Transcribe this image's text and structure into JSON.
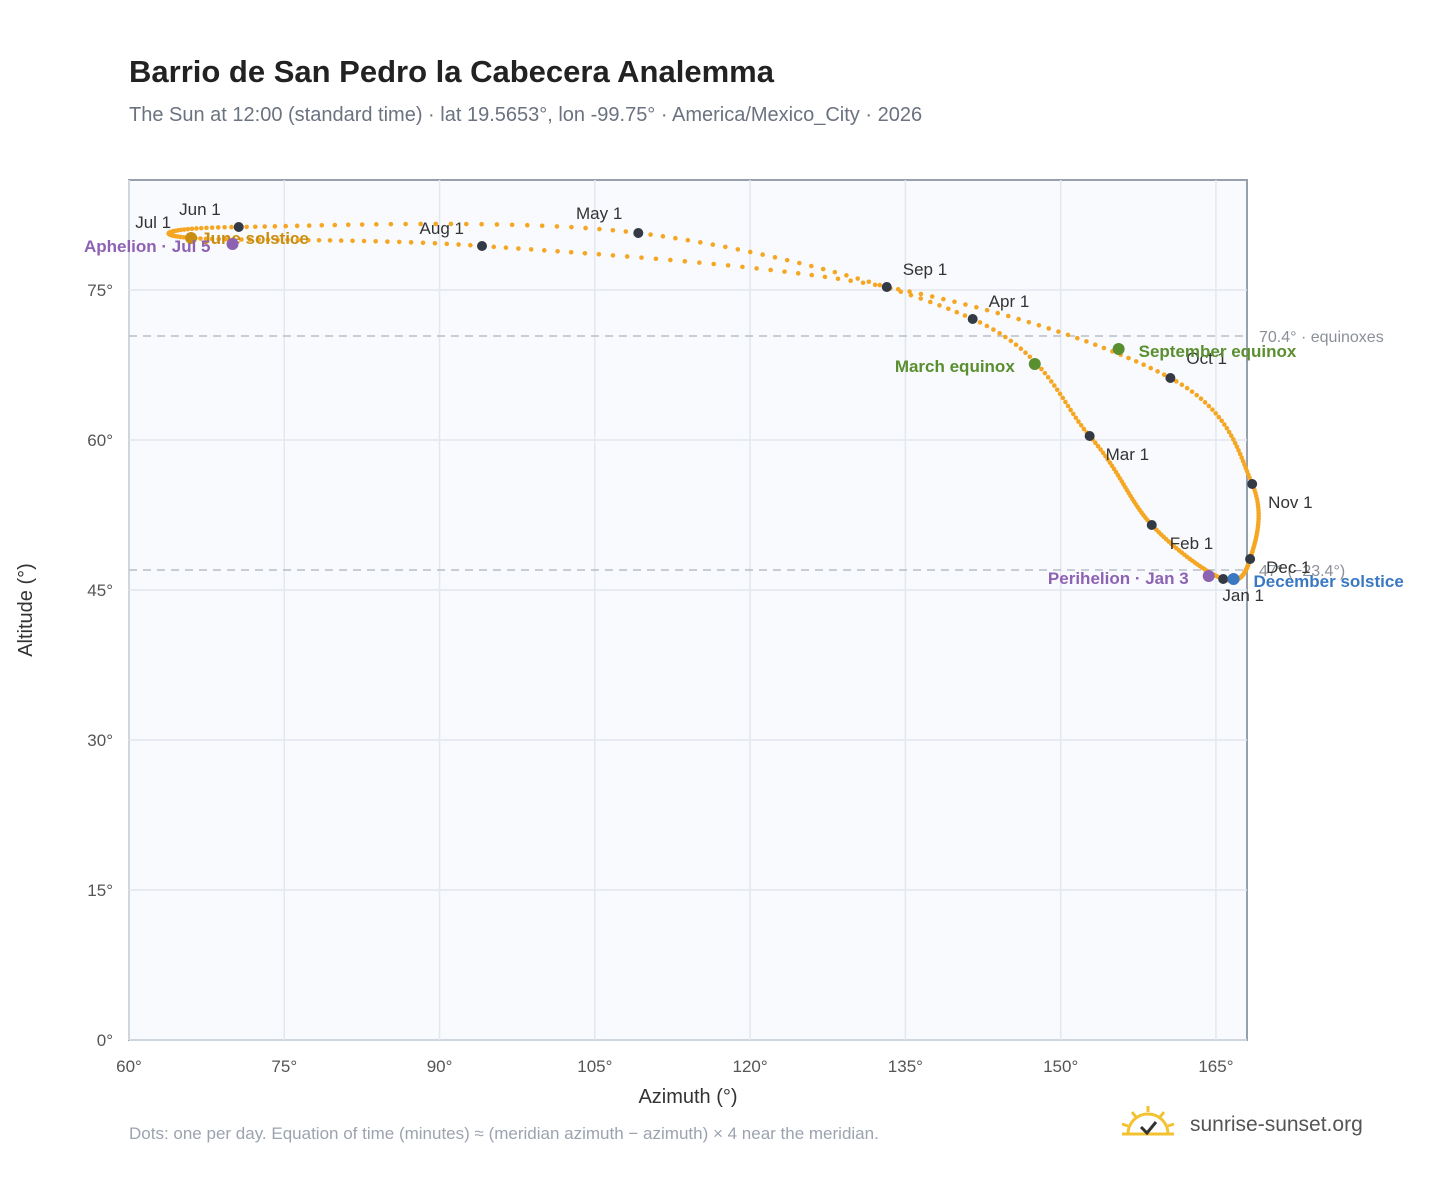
{
  "header": {
    "title": "Barrio de San Pedro la Cabecera Analemma",
    "subtitle": "The Sun at 12:00 (standard time) · lat 19.5653°, lon -99.75° · America/Mexico_City · 2026"
  },
  "footer": {
    "note": "Dots: one per day. Equation of time (minutes) ≈ (meridian azimuth − azimuth) × 4 near the meridian.",
    "brand": "sunrise-sunset.org"
  },
  "colors": {
    "curve": "#f5a623",
    "month_marker": "#333a45",
    "plot_bg": "#f8fafd",
    "grid": "#e3e8ef",
    "equinox": "#5a8f2f",
    "aphelion_perihelion": "#8e62b3",
    "june_solstice": "#c98d12",
    "december_solstice": "#3a78c2",
    "ref_line": "#b7bcc6"
  },
  "chart_data": {
    "type": "scatter",
    "xlabel": "Azimuth (°)",
    "ylabel": "Altitude (°)",
    "xlim": [
      60,
      168
    ],
    "ylim": [
      0,
      86
    ],
    "xticks": [
      60,
      75,
      90,
      105,
      120,
      135,
      150,
      165
    ],
    "xtick_labels": [
      "60°",
      "75°",
      "90°",
      "105°",
      "120°",
      "135°",
      "150°",
      "165°"
    ],
    "yticks": [
      0,
      15,
      30,
      45,
      60,
      75
    ],
    "ytick_labels": [
      "0°",
      "15°",
      "30°",
      "45°",
      "60°",
      "75°"
    ],
    "grid": true,
    "reference_lines": [
      {
        "altitude": 70.4,
        "label": "70.4° · equinoxes"
      },
      {
        "altitude": 47.0,
        "label": "47° (−23.4°)"
      }
    ],
    "months": [
      {
        "label": "Jan 1",
        "az": 165.7,
        "alt": 46.1
      },
      {
        "label": "Feb 1",
        "az": 158.8,
        "alt": 51.5
      },
      {
        "label": "Mar 1",
        "az": 152.8,
        "alt": 60.4
      },
      {
        "label": "Apr 1",
        "az": 141.5,
        "alt": 72.1
      },
      {
        "label": "May 1",
        "az": 109.2,
        "alt": 80.7
      },
      {
        "label": "Jun 1",
        "az": 70.6,
        "alt": 81.3
      },
      {
        "label": "Jul 1",
        "az": 66.0,
        "alt": 80.2
      },
      {
        "label": "Aug 1",
        "az": 94.1,
        "alt": 79.4
      },
      {
        "label": "Sep 1",
        "az": 133.2,
        "alt": 75.3
      },
      {
        "label": "Oct 1",
        "az": 160.6,
        "alt": 66.2
      },
      {
        "label": "Nov 1",
        "az": 168.5,
        "alt": 55.6
      },
      {
        "label": "Dec 1",
        "az": 168.3,
        "alt": 48.1
      }
    ],
    "events": [
      {
        "label": "March equinox",
        "az": 147.5,
        "alt": 67.6,
        "color_key": "equinox"
      },
      {
        "label": "September equinox",
        "az": 155.6,
        "alt": 69.1,
        "color_key": "equinox"
      },
      {
        "label": "June solstice",
        "az": 66.0,
        "alt": 80.2,
        "color_key": "june_solstice"
      },
      {
        "label": "December solstice",
        "az": 166.7,
        "alt": 46.1,
        "color_key": "december_solstice"
      },
      {
        "label": "Aphelion · Jul 5",
        "az": 70.0,
        "alt": 79.6,
        "color_key": "aphelion_perihelion"
      },
      {
        "label": "Perihelion · Jan 3",
        "az": 164.3,
        "alt": 46.4,
        "color_key": "aphelion_perihelion"
      }
    ]
  }
}
